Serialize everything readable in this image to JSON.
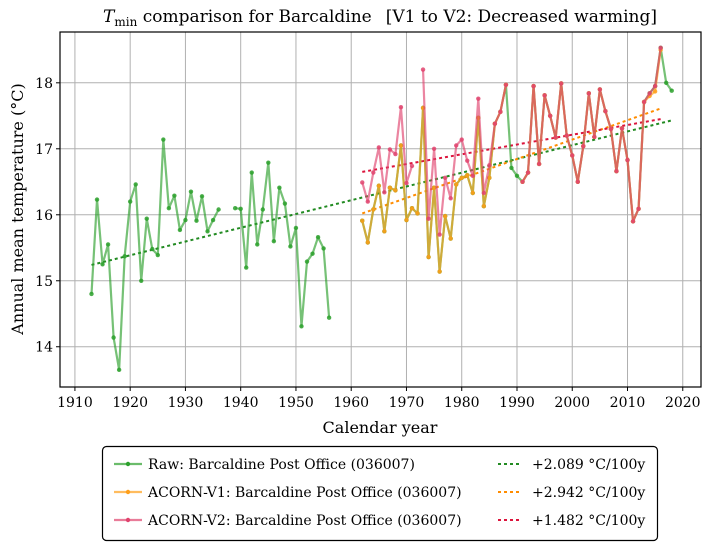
{
  "chart_data": {
    "type": "line",
    "title": {
      "var_main": "T",
      "var_sub": "min",
      "rest": " comparison for Barcaldine",
      "bracket": "[V1 to V2: Decreased warming]"
    },
    "xlabel": "Calendar year",
    "ylabel": "Annual mean temperature (°C)",
    "xlim": [
      1907.3,
      2023.3
    ],
    "ylim": [
      13.39,
      18.77
    ],
    "xticks": [
      1910,
      1920,
      1930,
      1940,
      1950,
      1960,
      1970,
      1980,
      1990,
      2000,
      2010,
      2020
    ],
    "yticks": [
      14,
      15,
      16,
      17,
      18
    ],
    "grid": true,
    "legend_position": "below",
    "series": [
      {
        "name": "Raw: Barcaldine Post Office (036007)",
        "color": "#2ca02c",
        "points": [
          [
            1913,
            14.8
          ],
          [
            1914,
            16.23
          ],
          [
            1915,
            15.25
          ],
          [
            1916,
            15.55
          ],
          [
            1917,
            14.14
          ],
          [
            1918,
            13.65
          ],
          [
            1919,
            15.37
          ],
          [
            1920,
            16.2
          ],
          [
            1921,
            16.46
          ],
          [
            1922,
            15.0
          ],
          [
            1923,
            15.94
          ],
          [
            1924,
            15.48
          ],
          [
            1925,
            15.39
          ],
          [
            1926,
            17.14
          ],
          [
            1927,
            16.1
          ],
          [
            1928,
            16.29
          ],
          [
            1929,
            15.77
          ],
          [
            1930,
            15.92
          ],
          [
            1931,
            16.35
          ],
          [
            1932,
            15.91
          ],
          [
            1933,
            16.28
          ],
          [
            1934,
            15.75
          ],
          [
            1935,
            15.92
          ],
          [
            1936,
            16.08
          ],
          null,
          [
            1939,
            16.1
          ],
          [
            1940,
            16.09
          ],
          [
            1941,
            15.2
          ],
          [
            1942,
            16.64
          ],
          [
            1943,
            15.55
          ],
          [
            1944,
            16.08
          ],
          [
            1945,
            16.79
          ],
          [
            1946,
            15.6
          ],
          [
            1947,
            16.41
          ],
          [
            1948,
            16.17
          ],
          [
            1949,
            15.52
          ],
          [
            1950,
            15.8
          ],
          [
            1951,
            14.31
          ],
          [
            1952,
            15.29
          ],
          [
            1953,
            15.41
          ],
          [
            1954,
            15.66
          ],
          [
            1955,
            15.49
          ],
          [
            1956,
            14.44
          ],
          null,
          [
            1962,
            15.91
          ],
          [
            1963,
            15.58
          ],
          [
            1964,
            16.08
          ],
          [
            1965,
            16.44
          ],
          [
            1966,
            15.75
          ],
          [
            1967,
            16.41
          ],
          [
            1968,
            16.37
          ],
          [
            1969,
            17.05
          ],
          [
            1970,
            15.92
          ],
          [
            1971,
            16.1
          ],
          [
            1972,
            16.02
          ],
          [
            1973,
            17.62
          ],
          [
            1974,
            15.36
          ],
          [
            1975,
            16.41
          ],
          [
            1976,
            15.14
          ],
          [
            1977,
            15.98
          ],
          [
            1978,
            15.64
          ],
          [
            1979,
            16.46
          ],
          [
            1980,
            16.56
          ],
          [
            1981,
            16.6
          ],
          [
            1982,
            16.33
          ],
          [
            1983,
            17.47
          ],
          [
            1984,
            16.13
          ],
          [
            1985,
            16.56
          ],
          [
            1986,
            17.38
          ],
          [
            1987,
            17.56
          ],
          [
            1988,
            17.97
          ],
          [
            1989,
            16.71
          ],
          [
            1990,
            16.59
          ],
          [
            1991,
            16.5
          ],
          [
            1992,
            16.64
          ],
          [
            1993,
            17.95
          ],
          [
            1994,
            16.77
          ],
          [
            1995,
            17.81
          ],
          [
            1996,
            17.5
          ],
          [
            1997,
            17.17
          ],
          [
            1998,
            17.99
          ],
          [
            1999,
            17.2
          ],
          [
            2000,
            16.9
          ],
          [
            2001,
            16.5
          ],
          [
            2002,
            17.04
          ],
          [
            2003,
            17.84
          ],
          [
            2004,
            17.18
          ],
          [
            2005,
            17.9
          ],
          [
            2006,
            17.57
          ],
          [
            2007,
            17.3
          ],
          [
            2008,
            16.66
          ],
          [
            2009,
            17.31
          ],
          [
            2010,
            16.83
          ],
          [
            2011,
            15.9
          ],
          [
            2012,
            16.09
          ],
          [
            2013,
            17.71
          ],
          [
            2014,
            17.84
          ],
          [
            2015,
            17.95
          ],
          [
            2016,
            18.53
          ],
          [
            2017,
            18.0
          ],
          [
            2018,
            17.88
          ]
        ]
      },
      {
        "name": "ACORN-V1: Barcaldine Post Office (036007)",
        "color": "#ff9f1a",
        "points": [
          [
            1962,
            15.91
          ],
          [
            1963,
            15.58
          ],
          [
            1964,
            16.08
          ],
          [
            1965,
            16.44
          ],
          [
            1966,
            15.75
          ],
          [
            1967,
            16.41
          ],
          [
            1968,
            16.37
          ],
          [
            1969,
            17.05
          ],
          [
            1970,
            15.92
          ],
          [
            1971,
            16.1
          ],
          [
            1972,
            16.02
          ],
          [
            1973,
            17.62
          ],
          [
            1974,
            15.36
          ],
          [
            1975,
            16.41
          ],
          [
            1976,
            15.14
          ],
          [
            1977,
            15.98
          ],
          [
            1978,
            15.64
          ],
          [
            1979,
            16.46
          ],
          [
            1980,
            16.56
          ],
          [
            1981,
            16.6
          ],
          [
            1982,
            16.33
          ],
          [
            1983,
            17.47
          ],
          [
            1984,
            16.13
          ],
          [
            1985,
            16.56
          ],
          [
            1986,
            17.38
          ],
          [
            1987,
            17.56
          ],
          [
            1988,
            17.97
          ],
          null,
          [
            1991,
            16.5
          ],
          [
            1992,
            16.64
          ],
          [
            1993,
            17.95
          ],
          [
            1994,
            16.77
          ],
          [
            1995,
            17.81
          ],
          [
            1996,
            17.5
          ],
          [
            1997,
            17.17
          ],
          [
            1998,
            17.99
          ],
          [
            1999,
            17.2
          ],
          [
            2000,
            16.9
          ],
          [
            2001,
            16.5
          ],
          [
            2002,
            17.04
          ],
          [
            2003,
            17.84
          ],
          [
            2004,
            17.18
          ],
          [
            2005,
            17.9
          ],
          [
            2006,
            17.57
          ],
          [
            2007,
            17.3
          ],
          [
            2008,
            16.66
          ],
          [
            2009,
            17.31
          ],
          [
            2010,
            16.83
          ],
          [
            2011,
            15.9
          ],
          [
            2012,
            16.09
          ],
          [
            2013,
            17.71
          ],
          [
            2014,
            17.8
          ],
          [
            2015,
            17.87
          ],
          [
            2016,
            18.5
          ]
        ]
      },
      {
        "name": "ACORN-V2: Barcaldine Post Office (036007)",
        "color": "#e0446e",
        "points": [
          [
            1962,
            16.49
          ],
          [
            1963,
            16.2
          ],
          [
            1964,
            16.64
          ],
          [
            1965,
            17.02
          ],
          [
            1966,
            16.34
          ],
          [
            1967,
            16.99
          ],
          [
            1968,
            16.92
          ],
          [
            1969,
            17.63
          ],
          [
            1970,
            16.48
          ],
          [
            1971,
            16.74
          ],
          null,
          [
            1973,
            18.2
          ],
          [
            1974,
            15.94
          ],
          [
            1975,
            17.0
          ],
          [
            1976,
            15.7
          ],
          [
            1977,
            16.56
          ],
          [
            1978,
            16.25
          ],
          [
            1979,
            17.05
          ],
          [
            1980,
            17.14
          ],
          [
            1981,
            16.82
          ],
          [
            1982,
            16.59
          ],
          [
            1983,
            17.76
          ],
          [
            1984,
            16.33
          ],
          [
            1985,
            16.75
          ],
          [
            1986,
            17.38
          ],
          [
            1987,
            17.56
          ],
          [
            1988,
            17.97
          ],
          null,
          [
            1991,
            16.5
          ],
          [
            1992,
            16.64
          ],
          [
            1993,
            17.95
          ],
          [
            1994,
            16.77
          ],
          [
            1995,
            17.81
          ],
          [
            1996,
            17.5
          ],
          [
            1997,
            17.17
          ],
          [
            1998,
            17.99
          ],
          [
            1999,
            17.2
          ],
          [
            2000,
            16.9
          ],
          [
            2001,
            16.5
          ],
          [
            2002,
            17.04
          ],
          [
            2003,
            17.84
          ],
          [
            2004,
            17.18
          ],
          [
            2005,
            17.9
          ],
          [
            2006,
            17.57
          ],
          [
            2007,
            17.3
          ],
          [
            2008,
            16.66
          ],
          [
            2009,
            17.31
          ],
          [
            2010,
            16.83
          ],
          [
            2011,
            15.9
          ],
          [
            2012,
            16.09
          ],
          [
            2013,
            17.71
          ],
          [
            2014,
            17.84
          ],
          [
            2015,
            17.95
          ],
          [
            2016,
            18.53
          ]
        ]
      }
    ],
    "trends": [
      {
        "label": "+2.089 °C/100y",
        "color": "#228b22",
        "start": [
          1913,
          15.24
        ],
        "end": [
          2018,
          17.43
        ]
      },
      {
        "label": "+2.942 °C/100y",
        "color": "#ff8c00",
        "start": [
          1962,
          16.02
        ],
        "end": [
          2016,
          17.61
        ]
      },
      {
        "label": "+1.482 °C/100y",
        "color": "#dc143c",
        "start": [
          1962,
          16.65
        ],
        "end": [
          2016,
          17.45
        ]
      }
    ]
  }
}
